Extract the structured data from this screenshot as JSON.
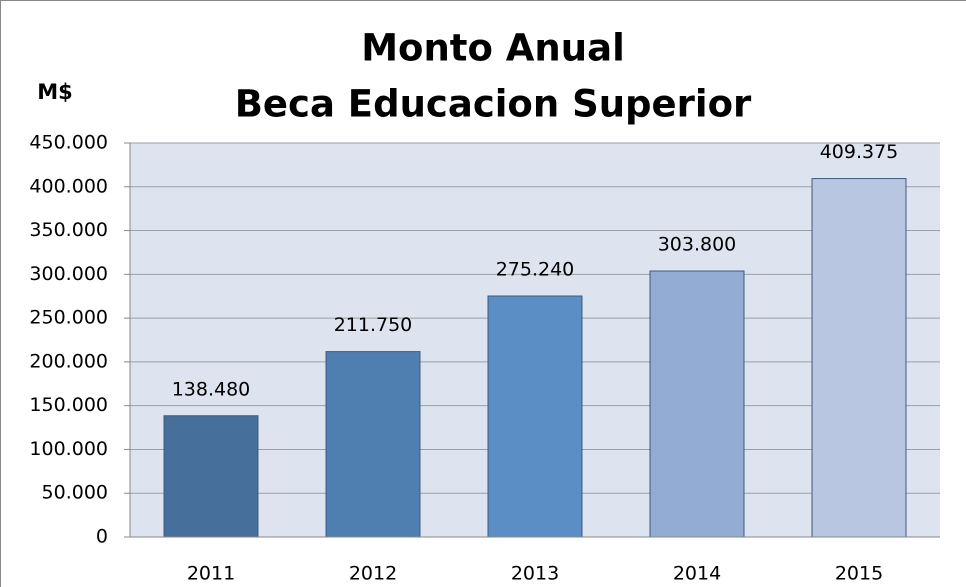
{
  "chart_data": {
    "type": "bar",
    "title": [
      "Monto Anual",
      "Beca Educacion Superior"
    ],
    "y_label": "M$",
    "categories": [
      "2011",
      "2012",
      "2013",
      "2014",
      "2015"
    ],
    "values": [
      138480,
      211750,
      275240,
      303800,
      409375
    ],
    "value_labels": [
      "138.480",
      "211.750",
      "275.240",
      "303.800",
      "409.375"
    ],
    "colors": [
      "#46709b",
      "#4f7fb1",
      "#5b8ec4",
      "#93acd4",
      "#b8c6e2"
    ],
    "ylim": [
      0,
      450000
    ],
    "yticks": [
      0,
      {
        "value": 50000,
        "label": "50.000"
      },
      {
        "value": 100000,
        "label": "100.000"
      },
      {
        "value": 150000,
        "label": "150.000"
      },
      {
        "value": 200000,
        "label": "200.000"
      },
      {
        "value": 250000,
        "label": "250.000"
      },
      {
        "value": 300000,
        "label": "300.000"
      },
      {
        "value": 350000,
        "label": "350.000"
      },
      {
        "value": 400000,
        "label": "400.000"
      },
      {
        "value": 450000,
        "label": "450.000"
      }
    ],
    "grid": true
  }
}
